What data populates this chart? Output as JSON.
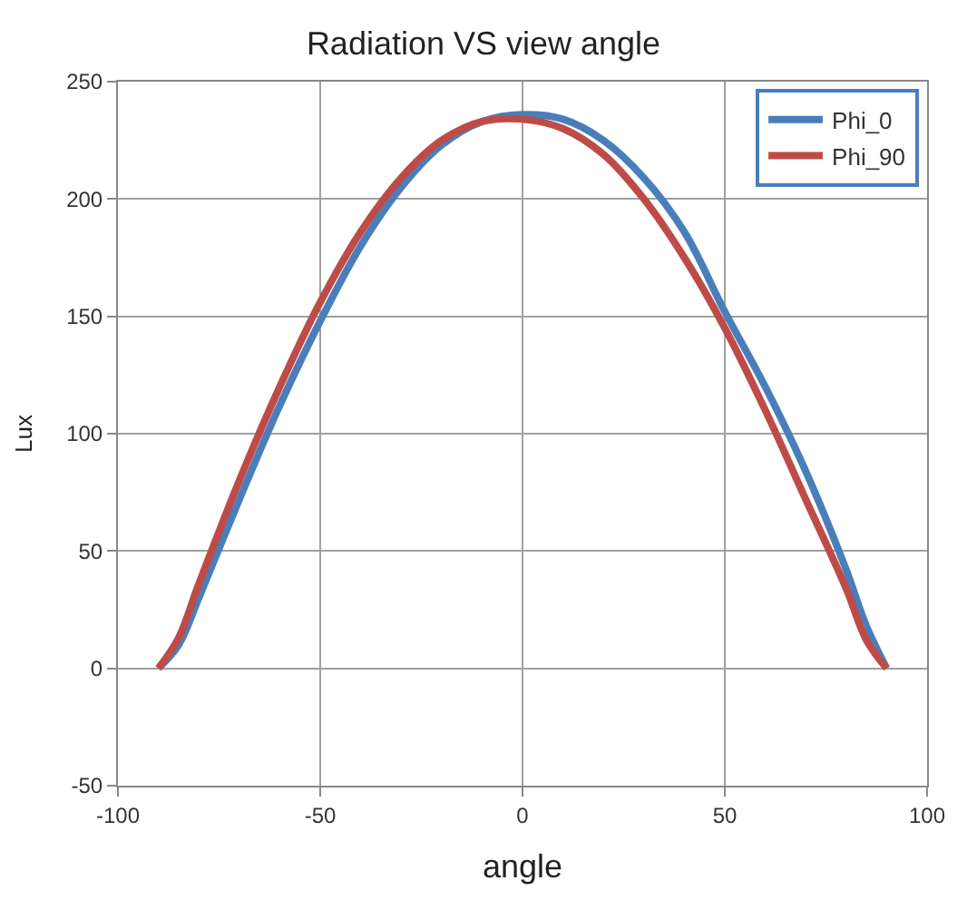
{
  "chart_data": {
    "type": "line",
    "title": "Radiation VS view angle",
    "xlabel": "angle",
    "ylabel": "Lux",
    "x": [
      -90,
      -85,
      -80,
      -70,
      -60,
      -50,
      -40,
      -30,
      -20,
      -10,
      0,
      10,
      20,
      30,
      40,
      50,
      60,
      70,
      80,
      85,
      90
    ],
    "series": [
      {
        "name": "Phi_0",
        "color": "#4a7ebb",
        "values": [
          0,
          10,
          30,
          72,
          112,
          148,
          180,
          205,
          223,
          233,
          236,
          234,
          225,
          209,
          186,
          152,
          120,
          84,
          42,
          18,
          0
        ]
      },
      {
        "name": "Phi_90",
        "color": "#be4b48",
        "values": [
          0,
          13,
          36,
          80,
          120,
          156,
          186,
          209,
          225,
          233,
          234,
          230,
          219,
          200,
          175,
          145,
          110,
          72,
          34,
          12,
          0
        ]
      }
    ],
    "xlim": [
      -100,
      100
    ],
    "xticks": [
      -100,
      -50,
      0,
      50,
      100
    ],
    "ylim": [
      -50,
      250
    ],
    "yticks": [
      -50,
      0,
      50,
      100,
      150,
      200,
      250
    ],
    "grid": true,
    "legend": "top right",
    "marker": "none",
    "line_style": "solid"
  }
}
